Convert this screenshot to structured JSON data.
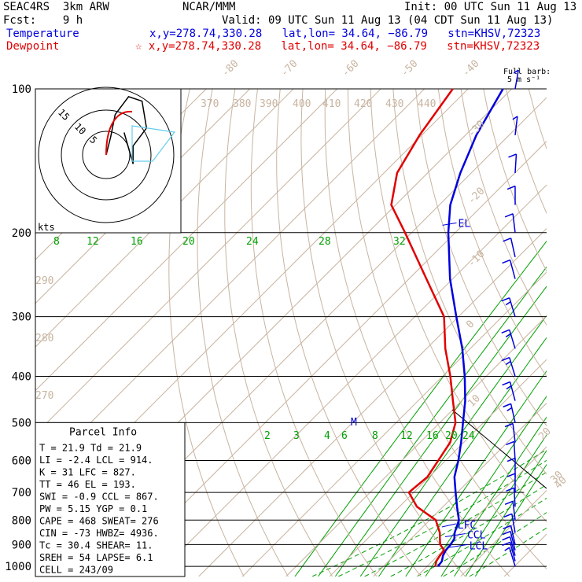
{
  "header": {
    "model": "SEAC4RS  3km ARW",
    "center": "NCAR/MMM",
    "init": "Init: 00 UTC Sun 11 Aug 13",
    "fcst": "Fcst:    9 h",
    "valid": "Valid: 09 UTC Sun 11 Aug 13 (04 CDT Sun 11 Aug 13)",
    "temp_label": "Temperature",
    "temp_loc": "x,y=278.74,330.28   lat,lon= 34.64, −86.79   stn=KHSV,72323",
    "dew_label": "Dewpoint",
    "dew_loc": "☆ x,y=278.74,330.28   lat,lon= 34.64, −86.79   stn=KHSV,72323"
  },
  "barb_label_1": "Full barb:",
  "barb_label_2": "5 m s⁻¹",
  "parcel_info": {
    "title": "Parcel Info",
    "rows": [
      "T  =    21.9  Td =   21.9",
      "LI =    -2.4  LCL =  914.",
      "K  =      31  LFC =  827.",
      "TT =      46  EL  =  193.",
      "SWI =   -0.9  CCL =  867.",
      "PW =    5.15  YGP =   0.1",
      "CAPE =   468  SWEAT=  276",
      "CIN =    -73  HWBZ= 4936.",
      "Tc =    30.4  SHEAR=  11.",
      "SREH =    54  LAPSE=  6.1",
      "CELL = 243/09"
    ]
  },
  "hodograph_label": "kts",
  "hodograph_rings": [
    "5",
    "10",
    "15"
  ],
  "level_labels": [
    "EL",
    "LFC",
    "CCL",
    "LCL"
  ],
  "parcel_marker": "M",
  "colors": {
    "temperature": "#0000dd",
    "dewpoint": "#e00000",
    "mixing_ratio": "#00a000",
    "isotherm": "#c8b4a0",
    "theta": "#c8b4a0",
    "isobar": "#000000"
  },
  "chart_data": {
    "type": "line",
    "title": "",
    "pressure_levels": [
      100,
      200,
      300,
      400,
      500,
      600,
      700,
      800,
      900,
      1000
    ],
    "isotherm_labels": [
      "-80",
      "-70",
      "-60",
      "-50",
      "-40",
      "-30",
      "-20",
      "-10",
      "0",
      "10",
      "20",
      "30",
      "40"
    ],
    "theta_labels": [
      "370",
      "380",
      "390",
      "400",
      "410",
      "420",
      "430",
      "440",
      "290",
      "280",
      "270"
    ],
    "mixing_ratio_labels_upper": [
      "8",
      "12",
      "16",
      "20",
      "24",
      "28",
      "32"
    ],
    "mixing_ratio_labels_lower": [
      "2",
      "3",
      "4",
      "6",
      "8",
      "12",
      "16",
      "20",
      "24"
    ],
    "series": [
      {
        "name": "Temperature",
        "points": [
          [
            1000,
            22.5
          ],
          [
            975,
            22.2
          ],
          [
            950,
            21.2
          ],
          [
            925,
            20.6
          ],
          [
            900,
            20.4
          ],
          [
            875,
            19.9
          ],
          [
            850,
            18.6
          ],
          [
            800,
            16.7
          ],
          [
            750,
            13.2
          ],
          [
            700,
            9.6
          ],
          [
            650,
            5.8
          ],
          [
            600,
            2.9
          ],
          [
            550,
            -0.6
          ],
          [
            500,
            -4.7
          ],
          [
            450,
            -9.2
          ],
          [
            400,
            -14.9
          ],
          [
            350,
            -21.8
          ],
          [
            300,
            -30.5
          ],
          [
            250,
            -40.6
          ],
          [
            200,
            -51.6
          ],
          [
            175,
            -57.5
          ],
          [
            150,
            -62.5
          ],
          [
            125,
            -67.5
          ],
          [
            100,
            -72
          ]
        ]
      },
      {
        "name": "Dewpoint",
        "points": [
          [
            1000,
            21.9
          ],
          [
            975,
            20.9
          ],
          [
            950,
            20.5
          ],
          [
            925,
            20.2
          ],
          [
            900,
            18.0
          ],
          [
            875,
            16.6
          ],
          [
            850,
            15.2
          ],
          [
            800,
            11.4
          ],
          [
            750,
            4.0
          ],
          [
            700,
            -1.1
          ],
          [
            650,
            -0.4
          ],
          [
            600,
            -1.7
          ],
          [
            550,
            -3.1
          ],
          [
            500,
            -6.4
          ],
          [
            450,
            -12.0
          ],
          [
            400,
            -18.2
          ],
          [
            350,
            -25.7
          ],
          [
            300,
            -33.3
          ],
          [
            250,
            -46.0
          ],
          [
            200,
            -61.5
          ],
          [
            175,
            -71.0
          ],
          [
            150,
            -77.0
          ],
          [
            125,
            -80.5
          ],
          [
            100,
            -83.5
          ]
        ]
      }
    ],
    "wind_barbs_kt": [
      {
        "p": 1000,
        "spd": 5,
        "dir": 240
      },
      {
        "p": 975,
        "spd": 10,
        "dir": 230
      },
      {
        "p": 950,
        "spd": 10,
        "dir": 230
      },
      {
        "p": 925,
        "spd": 10,
        "dir": 225
      },
      {
        "p": 900,
        "spd": 10,
        "dir": 220
      },
      {
        "p": 850,
        "spd": 10,
        "dir": 210
      },
      {
        "p": 800,
        "spd": 10,
        "dir": 200
      },
      {
        "p": 750,
        "spd": 10,
        "dir": 190
      },
      {
        "p": 700,
        "spd": 10,
        "dir": 180
      },
      {
        "p": 650,
        "spd": 10,
        "dir": 180
      },
      {
        "p": 600,
        "spd": 10,
        "dir": 190
      },
      {
        "p": 550,
        "spd": 10,
        "dir": 200
      },
      {
        "p": 500,
        "spd": 15,
        "dir": 220
      },
      {
        "p": 450,
        "spd": 15,
        "dir": 230
      },
      {
        "p": 400,
        "spd": 15,
        "dir": 240
      },
      {
        "p": 350,
        "spd": 15,
        "dir": 240
      },
      {
        "p": 300,
        "spd": 15,
        "dir": 240
      },
      {
        "p": 250,
        "spd": 10,
        "dir": 230
      },
      {
        "p": 225,
        "spd": 10,
        "dir": 220
      },
      {
        "p": 200,
        "spd": 10,
        "dir": 200
      },
      {
        "p": 175,
        "spd": 10,
        "dir": 180
      },
      {
        "p": 150,
        "spd": 10,
        "dir": 170
      },
      {
        "p": 125,
        "spd": 5,
        "dir": 160
      },
      {
        "p": 100,
        "spd": 5,
        "dir": 150
      }
    ],
    "hodograph_uv_kt": [
      [
        0,
        0
      ],
      [
        1,
        4
      ],
      [
        2,
        9
      ],
      [
        5,
        13
      ],
      [
        8,
        12
      ],
      [
        9,
        6
      ],
      [
        6,
        2
      ],
      [
        6,
        -2
      ],
      [
        4,
        5
      ]
    ]
  }
}
